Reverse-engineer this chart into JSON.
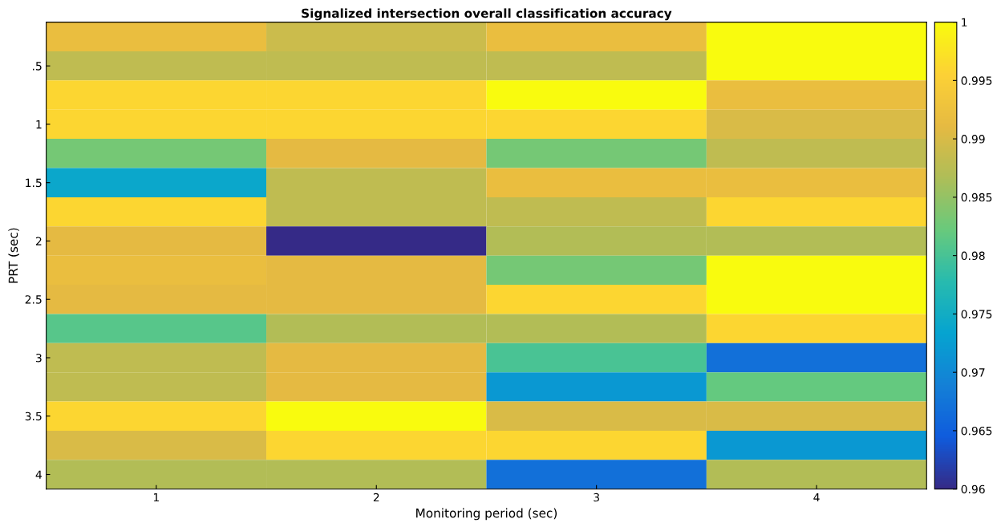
{
  "chart_data": {
    "type": "heatmap",
    "title": "Signalized intersection overall classification accuracy",
    "xlabel": "Monitoring period (sec)",
    "ylabel": "PRT (sec)",
    "categories": [
      "1",
      "2",
      "3",
      "4"
    ],
    "y_categories": [
      null,
      ".5",
      null,
      "1",
      null,
      "1.5",
      null,
      "2",
      null,
      "2.5",
      null,
      "3",
      null,
      "3.5",
      null,
      "4"
    ],
    "cells": [
      [
        0.992,
        0.989,
        0.992,
        1
      ],
      [
        0.988,
        0.988,
        0.988,
        1
      ],
      [
        0.996,
        0.996,
        1,
        0.992
      ],
      [
        0.996,
        0.996,
        0.996,
        0.99
      ],
      [
        0.983,
        0.991,
        0.983,
        0.988
      ],
      [
        0.974,
        0.988,
        0.992,
        0.992
      ],
      [
        0.996,
        0.988,
        0.988,
        0.996
      ],
      [
        0.991,
        0.96,
        0.987,
        0.987
      ],
      [
        0.992,
        0.991,
        0.983,
        1
      ],
      [
        0.991,
        0.991,
        0.996,
        1
      ],
      [
        0.981,
        0.987,
        0.987,
        0.996
      ],
      [
        0.988,
        0.991,
        0.98,
        0.967
      ],
      [
        0.988,
        0.991,
        0.972,
        0.982
      ],
      [
        0.996,
        1,
        0.99,
        0.99
      ],
      [
        0.99,
        0.996,
        0.996,
        0.972
      ],
      [
        0.987,
        0.987,
        0.967,
        0.987
      ]
    ],
    "clim": [
      0.96,
      1
    ],
    "cticks": [
      0.96,
      0.965,
      0.97,
      0.975,
      0.98,
      0.985,
      0.99,
      0.995,
      1
    ]
  }
}
